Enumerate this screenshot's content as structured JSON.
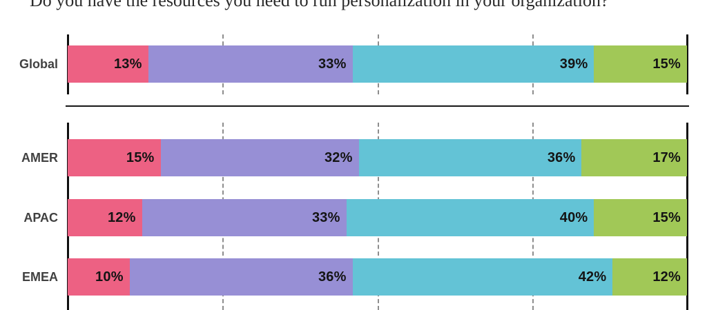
{
  "title": "Do you have the resources you need to run personalization in your organization?",
  "colors": {
    "segment_1": "#ED6183",
    "segment_2": "#978FD5",
    "segment_3": "#63C3D6",
    "segment_4": "#A1C857",
    "axis_line": "#101010",
    "gridline": "#8D8D8D",
    "row_label": "#414141",
    "value_label": "#141414",
    "background": "#FFFFFF"
  },
  "chart_data": {
    "type": "bar",
    "orientation": "horizontal",
    "stacked": true,
    "unit": "%",
    "title": "Do you have the resources you need to run personalization in your organization?",
    "xlabel": "",
    "ylabel": "",
    "xlim": [
      0,
      100
    ],
    "grid": "dashed vertical gridlines at 25, 50, 75; solid axis lines at 0 and 100",
    "gridlines_pct": [
      25,
      50,
      75
    ],
    "legend_position": "none",
    "segment_names": [
      "segment-1-pink",
      "segment-2-purple",
      "segment-3-teal",
      "segment-4-green"
    ],
    "groups": [
      {
        "name": "global",
        "rows": [
          {
            "category": "Global",
            "values": [
              13,
              33,
              39,
              15
            ],
            "labels": [
              "13%",
              "33%",
              "39%",
              "15%"
            ]
          }
        ]
      },
      {
        "name": "regions",
        "rows": [
          {
            "category": "AMER",
            "values": [
              15,
              32,
              36,
              17
            ],
            "labels": [
              "15%",
              "32%",
              "36%",
              "17%"
            ]
          },
          {
            "category": "APAC",
            "values": [
              12,
              33,
              40,
              15
            ],
            "labels": [
              "12%",
              "33%",
              "40%",
              "15%"
            ]
          },
          {
            "category": "EMEA",
            "values": [
              10,
              36,
              42,
              12
            ],
            "labels": [
              "10%",
              "36%",
              "42%",
              "12%"
            ]
          }
        ]
      }
    ]
  }
}
